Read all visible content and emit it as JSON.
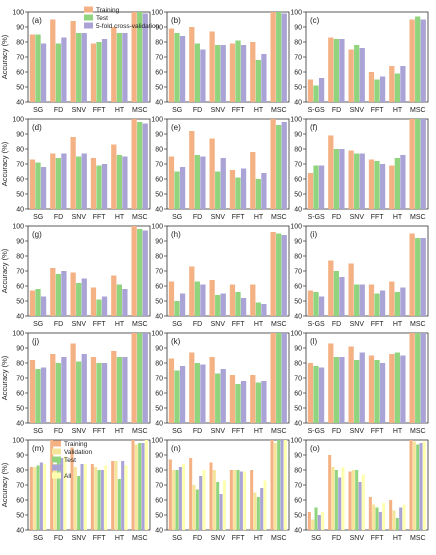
{
  "figure": {
    "ylabel": "Accuracy (%)",
    "colors": {
      "train": "#f4b183",
      "validation": "#f5e59a",
      "test": "#90d47e",
      "cv": "#a9a3d6",
      "all": "#ffffb0"
    },
    "ylim": [
      40,
      100
    ],
    "yticks": [
      40,
      50,
      60,
      70,
      80,
      90,
      100
    ]
  },
  "chart_data": [
    {
      "id": "a",
      "panel_label": "(a)",
      "type": "bar",
      "categories": [
        "SG",
        "FD",
        "SNV",
        "FFT",
        "HT",
        "MSC"
      ],
      "legend": "top-right",
      "series": [
        {
          "name": "Training",
          "key": "train",
          "values": [
            85,
            95,
            94,
            79,
            90,
            100
          ]
        },
        {
          "name": "Test",
          "key": "test",
          "values": [
            85,
            79,
            86,
            80,
            86,
            100
          ]
        },
        {
          "name": "5-fold cross-validation",
          "key": "cv",
          "values": [
            79,
            83,
            86,
            82,
            86,
            99
          ]
        }
      ]
    },
    {
      "id": "b",
      "panel_label": "(b)",
      "type": "bar",
      "categories": [
        "SG",
        "FD",
        "SNV",
        "FFT",
        "HT",
        "MSC"
      ],
      "series": [
        {
          "key": "train",
          "values": [
            89,
            90,
            87,
            79,
            80,
            100
          ]
        },
        {
          "key": "test",
          "values": [
            86,
            79,
            78,
            81,
            68,
            100
          ]
        },
        {
          "key": "cv",
          "values": [
            84,
            75,
            78,
            78,
            72,
            99
          ]
        }
      ]
    },
    {
      "id": "c",
      "panel_label": "(c)",
      "type": "bar",
      "categories": [
        "S-GS",
        "FD",
        "SNV",
        "FFT",
        "HT",
        "MSC"
      ],
      "series": [
        {
          "key": "train",
          "values": [
            55,
            83,
            75,
            60,
            64,
            95
          ]
        },
        {
          "key": "test",
          "values": [
            51,
            82,
            78,
            55,
            59,
            97
          ]
        },
        {
          "key": "cv",
          "values": [
            56,
            82,
            76,
            57,
            64,
            95
          ]
        }
      ]
    },
    {
      "id": "d",
      "panel_label": "(d)",
      "type": "bar",
      "categories": [
        "SG",
        "FD",
        "SNV",
        "FFT",
        "HT",
        "MSC"
      ],
      "series": [
        {
          "key": "train",
          "values": [
            73,
            77,
            88,
            74,
            83,
            100
          ]
        },
        {
          "key": "test",
          "values": [
            71,
            74,
            75,
            69,
            76,
            98
          ]
        },
        {
          "key": "cv",
          "values": [
            68,
            77,
            77,
            70,
            75,
            97
          ]
        }
      ]
    },
    {
      "id": "e",
      "panel_label": "(e)",
      "type": "bar",
      "categories": [
        "SG",
        "FD",
        "SNV",
        "FFT",
        "HT",
        "MSC"
      ],
      "series": [
        {
          "key": "train",
          "values": [
            75,
            92,
            87,
            66,
            78,
            100
          ]
        },
        {
          "key": "test",
          "values": [
            65,
            76,
            65,
            61,
            60,
            96
          ]
        },
        {
          "key": "cv",
          "values": [
            68,
            75,
            74,
            67,
            64,
            98
          ]
        }
      ]
    },
    {
      "id": "f",
      "panel_label": "(f)",
      "type": "bar",
      "categories": [
        "S-GS",
        "FD",
        "SNV",
        "FFT",
        "HT",
        "MSC"
      ],
      "series": [
        {
          "key": "train",
          "values": [
            64,
            89,
            79,
            73,
            69,
            100
          ]
        },
        {
          "key": "test",
          "values": [
            69,
            80,
            77,
            72,
            74,
            100
          ]
        },
        {
          "key": "cv",
          "values": [
            69,
            80,
            77,
            70,
            76,
            100
          ]
        }
      ]
    },
    {
      "id": "g",
      "panel_label": "(g)",
      "type": "bar",
      "categories": [
        "SG",
        "FD",
        "SNV",
        "FFT",
        "HT",
        "MSC"
      ],
      "series": [
        {
          "key": "train",
          "values": [
            57,
            72,
            69,
            59,
            67,
            100
          ]
        },
        {
          "key": "test",
          "values": [
            58,
            68,
            62,
            51,
            61,
            98
          ]
        },
        {
          "key": "cv",
          "values": [
            53,
            70,
            65,
            53,
            58,
            97
          ]
        }
      ]
    },
    {
      "id": "h",
      "panel_label": "(h)",
      "type": "bar",
      "categories": [
        "SG",
        "FD",
        "SNV",
        "FFT",
        "HT",
        "MSC"
      ],
      "series": [
        {
          "key": "train",
          "values": [
            63,
            73,
            64,
            61,
            61,
            96
          ]
        },
        {
          "key": "test",
          "values": [
            50,
            63,
            54,
            56,
            49,
            95
          ]
        },
        {
          "key": "cv",
          "values": [
            55,
            61,
            55,
            52,
            48,
            94
          ]
        }
      ]
    },
    {
      "id": "i",
      "panel_label": "(i)",
      "type": "bar",
      "categories": [
        "S-GS",
        "FD",
        "SNV",
        "FFT",
        "HT",
        "MSC"
      ],
      "series": [
        {
          "key": "train",
          "values": [
            57,
            77,
            75,
            61,
            63,
            95
          ]
        },
        {
          "key": "test",
          "values": [
            56,
            70,
            61,
            55,
            56,
            92
          ]
        },
        {
          "key": "cv",
          "values": [
            53,
            66,
            61,
            57,
            59,
            92
          ]
        }
      ]
    },
    {
      "id": "j",
      "panel_label": "(j)",
      "type": "bar",
      "categories": [
        "SG",
        "FD",
        "SNV",
        "FFT",
        "HT",
        "MSC"
      ],
      "series": [
        {
          "key": "train",
          "values": [
            82,
            86,
            93,
            84,
            88,
            100
          ]
        },
        {
          "key": "test",
          "values": [
            76,
            80,
            81,
            80,
            84,
            100
          ]
        },
        {
          "key": "cv",
          "values": [
            77,
            84,
            86,
            80,
            84,
            100
          ]
        }
      ]
    },
    {
      "id": "k",
      "panel_label": "(k)",
      "type": "bar",
      "categories": [
        "SG",
        "FD",
        "SNV",
        "FFT",
        "HT",
        "MSC"
      ],
      "series": [
        {
          "key": "train",
          "values": [
            83,
            87,
            84,
            72,
            72,
            100
          ]
        },
        {
          "key": "test",
          "values": [
            75,
            80,
            73,
            66,
            67,
            100
          ]
        },
        {
          "key": "cv",
          "values": [
            78,
            79,
            76,
            68,
            68,
            100
          ]
        }
      ]
    },
    {
      "id": "l",
      "panel_label": "(l)",
      "type": "bar",
      "categories": [
        "S-GS",
        "FD",
        "SNV",
        "FFT",
        "HT",
        "MSC"
      ],
      "series": [
        {
          "key": "train",
          "values": [
            80,
            93,
            91,
            85,
            86,
            100
          ]
        },
        {
          "key": "test",
          "values": [
            78,
            84,
            82,
            82,
            87,
            100
          ]
        },
        {
          "key": "cv",
          "values": [
            77,
            84,
            87,
            80,
            85,
            100
          ]
        }
      ]
    },
    {
      "id": "m",
      "panel_label": "(m)",
      "type": "bar",
      "categories": [
        "SG",
        "FD",
        "SNV",
        "FFT",
        "HT",
        "MSC"
      ],
      "legend": "top-left",
      "series": [
        {
          "name": "Training",
          "key": "train",
          "values": [
            82,
            100,
            95,
            84,
            86,
            100
          ]
        },
        {
          "name": "Validation",
          "key": "validation",
          "values": [
            82,
            84,
            82,
            82,
            86,
            97
          ]
        },
        {
          "name": "Test",
          "key": "test",
          "values": [
            83,
            86,
            76,
            80,
            74,
            98
          ]
        },
        {
          "name": "",
          "key": "cv",
          "values": [
            85,
            88,
            84,
            80,
            86,
            98
          ]
        },
        {
          "name": "All",
          "key": "all",
          "values": [
            84,
            89,
            84,
            83,
            83,
            100
          ]
        }
      ]
    },
    {
      "id": "n",
      "panel_label": "(n)",
      "type": "bar",
      "categories": [
        "SG",
        "FD",
        "SNV",
        "FFT",
        "HT",
        "MSC"
      ],
      "series": [
        {
          "key": "train",
          "values": [
            87,
            88,
            85,
            80,
            80,
            100
          ]
        },
        {
          "key": "validation",
          "values": [
            80,
            70,
            80,
            80,
            65,
            98
          ]
        },
        {
          "key": "test",
          "values": [
            80,
            67,
            72,
            80,
            62,
            100
          ]
        },
        {
          "key": "cv",
          "values": [
            82,
            76,
            64,
            79,
            68,
            100
          ]
        },
        {
          "key": "all",
          "values": [
            84,
            80,
            73,
            79,
            73,
            100
          ]
        }
      ]
    },
    {
      "id": "o",
      "panel_label": "(o)",
      "type": "bar",
      "categories": [
        "SG",
        "FD",
        "SNV",
        "FFT",
        "HT",
        "MSC"
      ],
      "series": [
        {
          "key": "train",
          "values": [
            52,
            90,
            79,
            62,
            60,
            100
          ]
        },
        {
          "key": "validation",
          "values": [
            47,
            82,
            80,
            57,
            53,
            99
          ]
        },
        {
          "key": "test",
          "values": [
            55,
            80,
            80,
            55,
            48,
            97
          ]
        },
        {
          "key": "cv",
          "values": [
            50,
            75,
            72,
            52,
            55,
            98
          ]
        },
        {
          "key": "all",
          "values": [
            52,
            82,
            77,
            58,
            57,
            99
          ]
        }
      ]
    }
  ]
}
